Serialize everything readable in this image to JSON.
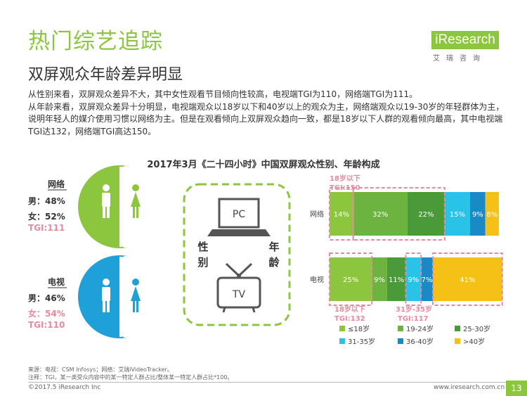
{
  "header": {
    "title": "热门综艺追踪",
    "subtitle": "双屏观众年龄差异明显",
    "logo_text": "iResearch",
    "logo_sub": "艾瑞咨询"
  },
  "description": [
    "从性别来看，双屏观众差异不大，其中女性观看节目倾向性较高，电视端TGI为110，网络端TGI为111。",
    "从年龄来看，双屏观众差异十分明显，电视端观众以18岁以下和40岁以上的观众为主，网络端观众以19-30岁的年轻群体为主，说明年轻人的媒介使用习惯以网络为主。但是在观看倾向上双屏观众趋向一致，都是18岁以下人群的观看倾向最高，其中电视端TGI达132，网络端TGI高达150。"
  ],
  "chart_title": "2017年3月《二十四小时》中国双屏观众性别、年龄构成",
  "gender_panels": [
    {
      "label": "网络",
      "male": "男：48%",
      "female": "女：52%",
      "tgi": "TGI:111"
    },
    {
      "label": "电视",
      "male": "男：46%",
      "female": "女：54%",
      "tgi": "TGI:110"
    }
  ],
  "center_panel": {
    "pc_label": "PC",
    "tv_label": "TV",
    "left_text": [
      "性",
      "别"
    ],
    "right_text": [
      "年",
      "龄"
    ]
  },
  "annotations": {
    "top": [
      "18岁以下",
      "TGI:150"
    ],
    "bottom_left": [
      "18岁以下",
      "TGI:132"
    ],
    "bottom_right": [
      "31岁-35岁",
      "TGI:117"
    ]
  },
  "colors": {
    "accent": "#8cc63f",
    "highlight": "#e88a9e",
    "pie_green": "#8cc63f",
    "pie_blue": "#1fa0d8"
  },
  "chart_data": {
    "type": "bar",
    "title": "2017年3月《二十四小时》中国双屏观众性别、年龄构成",
    "stacked": true,
    "orientation": "horizontal",
    "categories": [
      "网络",
      "电视"
    ],
    "xlim": [
      0,
      100
    ],
    "legend_position": "bottom",
    "series": [
      {
        "name": "≤18岁",
        "color": "#8cc63f",
        "values": [
          14,
          25
        ],
        "labels": [
          "14%",
          "25%"
        ]
      },
      {
        "name": "19-24岁",
        "color": "#6db33f",
        "values": [
          32,
          9
        ],
        "labels": [
          "32%",
          "9%"
        ]
      },
      {
        "name": "25-30岁",
        "color": "#4a9a3a",
        "values": [
          22,
          11
        ],
        "labels": [
          "22%",
          "11%"
        ]
      },
      {
        "name": "31-35岁",
        "color": "#29c3e8",
        "values": [
          15,
          9
        ],
        "labels": [
          "15%",
          "9%"
        ]
      },
      {
        "name": "36-40岁",
        "color": "#1a8ac6",
        "values": [
          9,
          7
        ],
        "labels": [
          "9%",
          "7%"
        ]
      },
      {
        "name": ">40岁",
        "color": "#f5c116",
        "values": [
          8,
          41
        ],
        "labels": [
          "8%",
          "41%"
        ]
      }
    ],
    "gender": {
      "网络": {
        "male": 48,
        "female": 52,
        "female_tgi": 111
      },
      "电视": {
        "male": 46,
        "female": 54,
        "female_tgi": 110
      }
    }
  },
  "footer": {
    "source": "来源：电视：CSM Infosys；网络：艾瑞iVideoTracker。",
    "note": "注释：TGI，某一类受众内容中的某一特定人群占比/整体某一特定人群占比*100。",
    "copyright": "©2017.5 iResearch Inc",
    "site": "www.iresearch.com.cn",
    "page": "13"
  }
}
